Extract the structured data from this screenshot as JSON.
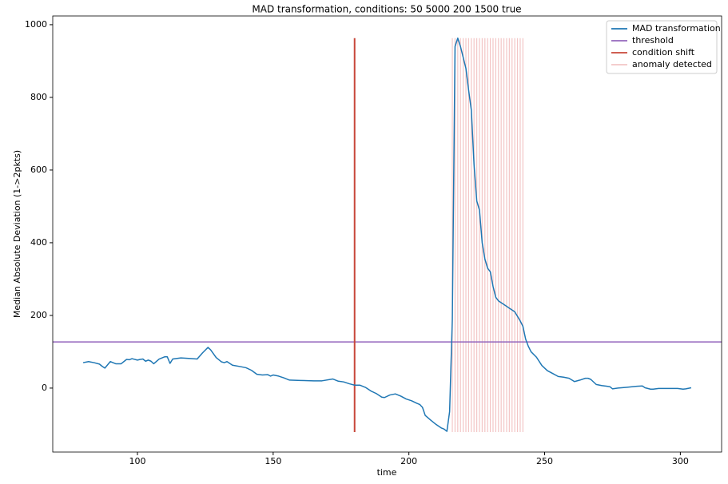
{
  "chart_data": {
    "type": "line",
    "title": "MAD transformation, conditions: 50 5000 200 1500 true",
    "x_label": "time",
    "y_label": "Median Absolute Deviation (1->2pkts)",
    "xlim": [
      68.8,
      315.2
    ],
    "ylim": [
      -176,
      1024
    ],
    "xticks": [
      100,
      150,
      200,
      250,
      300
    ],
    "yticks": [
      0,
      200,
      400,
      600,
      800,
      1000
    ],
    "grid": false,
    "legend": "upper right",
    "x": [
      80,
      82,
      84,
      86,
      87,
      88,
      90,
      92,
      94,
      96,
      97,
      98,
      100,
      101,
      102,
      103,
      104,
      105,
      106,
      108,
      110,
      111,
      112,
      113,
      116,
      120,
      122,
      124,
      126,
      127,
      129,
      131,
      132,
      133,
      135,
      138,
      140,
      142,
      144,
      146,
      148,
      149,
      150,
      152,
      154,
      156,
      160,
      165,
      168,
      172,
      174,
      176,
      178,
      180,
      182,
      184,
      186,
      188,
      190,
      191,
      193,
      195,
      197,
      199,
      201,
      203,
      204,
      205,
      206,
      208,
      210,
      212,
      213,
      214,
      215,
      216,
      217,
      218,
      219,
      220,
      221,
      222,
      223,
      224,
      225,
      226,
      227,
      228,
      229,
      230,
      231,
      232,
      233,
      235,
      237,
      239,
      241,
      242,
      243,
      244,
      245,
      247,
      249,
      251,
      253,
      255,
      257,
      259,
      261,
      263,
      265,
      266,
      267,
      269,
      271,
      273,
      274,
      275,
      277,
      280,
      284,
      286,
      287,
      289,
      290,
      292,
      296,
      299,
      301,
      302,
      304
    ],
    "series": [
      {
        "name": "MAD transformation",
        "color": "#1f77b4",
        "values": [
          70,
          73,
          70,
          66,
          60,
          55,
          73,
          67,
          67,
          79,
          78,
          81,
          77,
          79,
          80,
          74,
          77,
          74,
          67,
          80,
          86,
          86,
          68,
          80,
          83,
          81,
          80,
          97,
          112,
          105,
          84,
          72,
          70,
          73,
          63,
          59,
          56,
          49,
          38,
          36,
          37,
          33,
          36,
          33,
          28,
          22,
          21,
          20,
          20,
          25,
          19,
          17,
          12,
          8,
          8,
          2,
          -8,
          -15,
          -25,
          -26,
          -19,
          -16,
          -22,
          -30,
          -35,
          -42,
          -45,
          -53,
          -75,
          -88,
          -100,
          -110,
          -113,
          -119,
          -65,
          190,
          940,
          963,
          940,
          910,
          880,
          820,
          765,
          615,
          515,
          490,
          400,
          355,
          330,
          320,
          280,
          250,
          240,
          230,
          220,
          210,
          185,
          170,
          135,
          115,
          100,
          85,
          62,
          48,
          40,
          32,
          30,
          27,
          18,
          22,
          27,
          27,
          24,
          10,
          7,
          5,
          4,
          -2,
          0,
          2,
          5,
          6,
          1,
          -3,
          -3,
          -1,
          -1,
          -1,
          -3,
          -2,
          1
        ]
      }
    ],
    "hlines": [
      {
        "name": "threshold",
        "color": "#9467bd",
        "value": 127
      }
    ],
    "vlines": [
      {
        "name": "condition shift",
        "color": "#c8473a",
        "x": 180,
        "ymin": -121,
        "ymax": 963
      }
    ],
    "anomalies": {
      "name": "anomaly detected",
      "color": "#f3c6c6",
      "ymin": -121,
      "ymax": 963,
      "x": [
        216,
        217,
        218,
        219,
        220,
        221,
        222,
        223,
        224,
        225,
        226,
        227,
        228,
        229,
        230,
        231,
        232,
        233,
        234,
        235,
        236,
        237,
        238,
        239,
        240,
        241,
        242
      ]
    }
  }
}
